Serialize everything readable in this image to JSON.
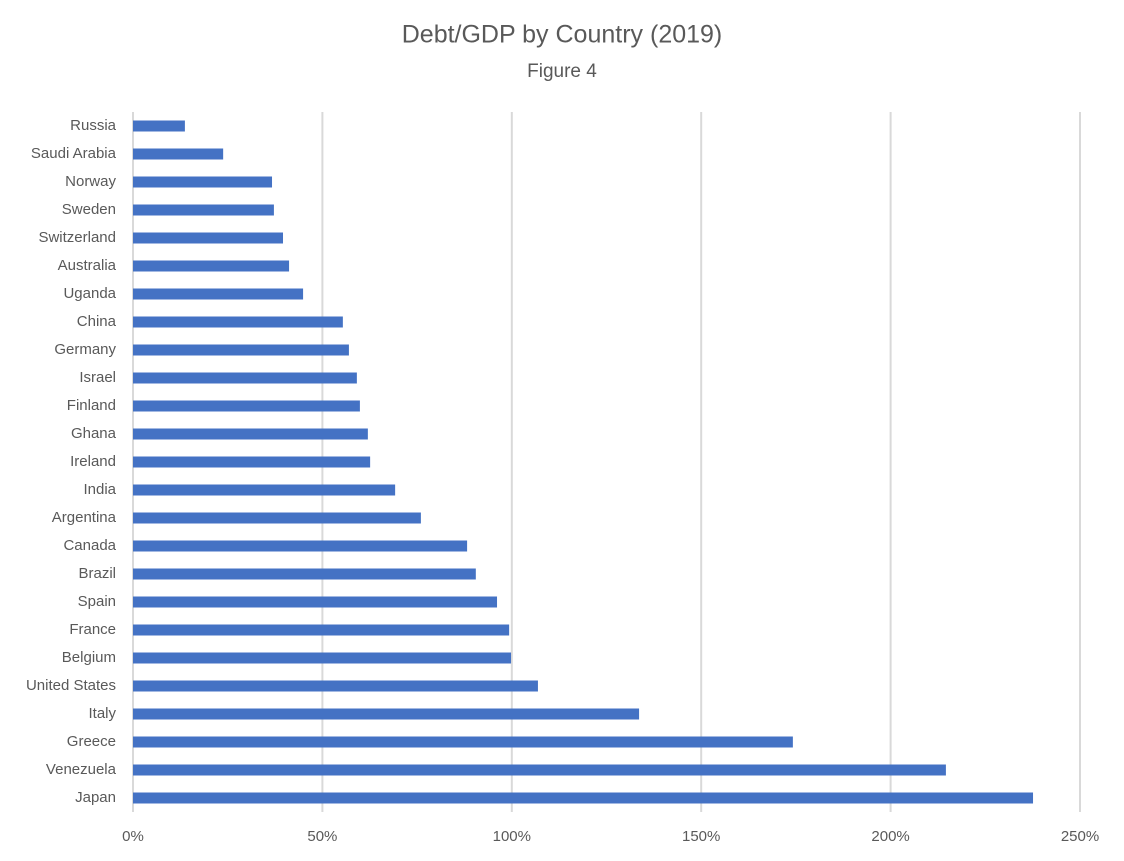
{
  "chart_data": {
    "type": "barh",
    "title": "Debt/GDP by Country (2019)",
    "subtitle": "Figure 4",
    "categories": [
      "Russia",
      "Saudi Arabia",
      "Norway",
      "Sweden",
      "Switzerland",
      "Australia",
      "Uganda",
      "China",
      "Germany",
      "Israel",
      "Finland",
      "Ghana",
      "Ireland",
      "India",
      "Argentina",
      "Canada",
      "Brazil",
      "Spain",
      "France",
      "Belgium",
      "United States",
      "Italy",
      "Greece",
      "Venezuela",
      "Japan"
    ],
    "values": [
      13.7,
      23.8,
      36.7,
      37.2,
      39.6,
      41.2,
      44.9,
      55.4,
      57.0,
      59.1,
      59.9,
      62.0,
      62.6,
      69.2,
      76.0,
      88.2,
      90.5,
      96.1,
      99.3,
      99.8,
      106.9,
      133.6,
      174.2,
      214.6,
      237.6
    ],
    "color": "#4472c4",
    "xlim": [
      0,
      250
    ],
    "xticks": [
      {
        "value": 0,
        "label": "0%"
      },
      {
        "value": 50,
        "label": "50%"
      },
      {
        "value": 100,
        "label": "100%"
      },
      {
        "value": 150,
        "label": "150%"
      },
      {
        "value": 200,
        "label": "200%"
      },
      {
        "value": 250,
        "label": "250%"
      }
    ],
    "grid": true
  }
}
